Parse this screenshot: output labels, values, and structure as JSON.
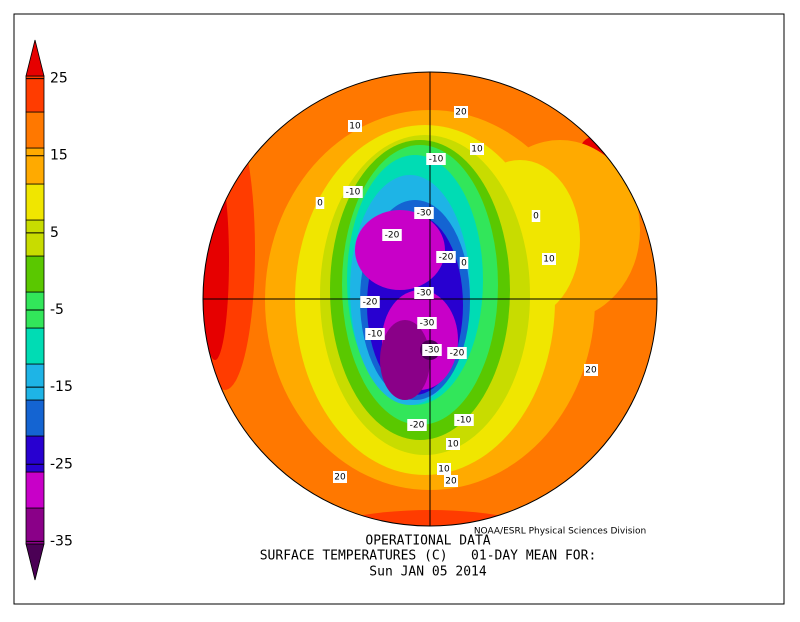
{
  "colorbar": {
    "ticks": [
      25,
      15,
      5,
      -5,
      -15,
      -25,
      -35
    ],
    "range": [
      -40,
      30
    ],
    "colors": [
      "#4b0055",
      "#8a0088",
      "#c800c8",
      "#2800d0",
      "#1464d2",
      "#1eb4e6",
      "#00dcb4",
      "#32e65a",
      "#5ac800",
      "#c8dc00",
      "#f0e600",
      "#ffaa00",
      "#ff7800",
      "#ff3c00",
      "#e60000"
    ]
  },
  "map": {
    "contour_labels": [
      "20",
      "10",
      "-10",
      "10",
      "-10",
      "0",
      "-30",
      "-20",
      "0",
      "-20",
      "0",
      "10",
      "-20",
      "-30",
      "-10",
      "-30",
      "-30",
      "-20",
      "20",
      "-10",
      "-20",
      "10",
      "10",
      "20",
      "20"
    ]
  },
  "credit": "NOAA/ESRL Physical Sciences Division",
  "caption": [
    "OPERATIONAL DATA",
    "SURFACE TEMPERATURES (C)   01-DAY MEAN FOR:",
    "Sun JAN 05 2014"
  ]
}
